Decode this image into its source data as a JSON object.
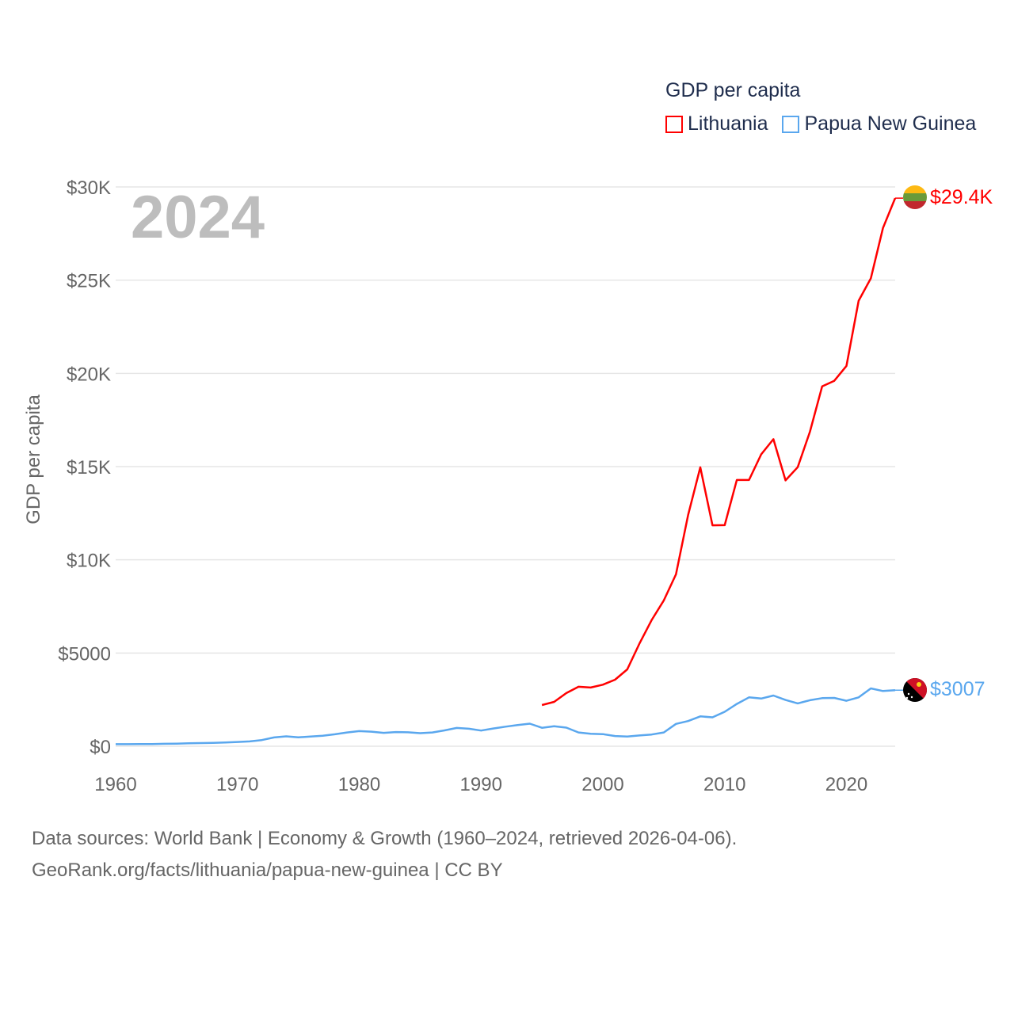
{
  "chart_data": {
    "type": "line",
    "title": "GDP per capita",
    "ylabel": "GDP per capita",
    "xlabel": "",
    "year_label": "2024",
    "xlim": [
      1960,
      2024
    ],
    "ylim": [
      0,
      30000
    ],
    "x_ticks": [
      1960,
      1970,
      1980,
      1990,
      2000,
      2010,
      2020
    ],
    "y_ticks": [
      0,
      5000,
      10000,
      15000,
      20000,
      25000,
      30000
    ],
    "y_tick_labels": [
      "$0",
      "$5000",
      "$10K",
      "$15K",
      "$20K",
      "$25K",
      "$30K"
    ],
    "grid": true,
    "legend_placement": "top-right",
    "series": [
      {
        "name": "Lithuania",
        "color": "#ff0000",
        "end_label": "$29.4K",
        "x": [
          1995,
          1996,
          1997,
          1998,
          1999,
          2000,
          2001,
          2002,
          2003,
          2004,
          2005,
          2006,
          2007,
          2008,
          2009,
          2010,
          2011,
          2012,
          2013,
          2014,
          2015,
          2016,
          2017,
          2018,
          2019,
          2020,
          2021,
          2022,
          2023,
          2024
        ],
        "values": [
          2210,
          2380,
          2850,
          3190,
          3150,
          3300,
          3570,
          4120,
          5500,
          6760,
          7820,
          9220,
          12400,
          14960,
          11850,
          11860,
          14280,
          14280,
          15660,
          16470,
          14260,
          14970,
          16870,
          19300,
          19600,
          20400,
          23900,
          25100,
          27800,
          29400
        ]
      },
      {
        "name": "Papua New Guinea",
        "color": "#5aa7ee",
        "end_label": "$3007",
        "x": [
          1960,
          1961,
          1962,
          1963,
          1964,
          1965,
          1966,
          1967,
          1968,
          1969,
          1970,
          1971,
          1972,
          1973,
          1974,
          1975,
          1976,
          1977,
          1978,
          1979,
          1980,
          1981,
          1982,
          1983,
          1984,
          1985,
          1986,
          1987,
          1988,
          1989,
          1990,
          1991,
          1992,
          1993,
          1994,
          1995,
          1996,
          1997,
          1998,
          1999,
          2000,
          2001,
          2002,
          2003,
          2004,
          2005,
          2006,
          2007,
          2008,
          2009,
          2010,
          2011,
          2012,
          2013,
          2014,
          2015,
          2016,
          2017,
          2018,
          2019,
          2020,
          2021,
          2022,
          2023,
          2024
        ],
        "values": [
          110,
          110,
          120,
          120,
          130,
          140,
          160,
          170,
          180,
          200,
          230,
          260,
          330,
          470,
          530,
          480,
          520,
          560,
          640,
          740,
          810,
          780,
          720,
          760,
          750,
          700,
          740,
          850,
          980,
          940,
          840,
          950,
          1050,
          1140,
          1210,
          990,
          1070,
          1000,
          740,
          670,
          650,
          550,
          520,
          580,
          630,
          740,
          1200,
          1350,
          1600,
          1550,
          1850,
          2270,
          2620,
          2560,
          2720,
          2480,
          2300,
          2470,
          2580,
          2590,
          2440,
          2620,
          3100,
          2960,
          3007
        ]
      }
    ]
  },
  "source": {
    "line1": "Data sources: World Bank | Economy & Growth (1960–2024, retrieved 2026-04-06).",
    "line2": "GeoRank.org/facts/lithuania/papua-new-guinea | CC BY"
  }
}
